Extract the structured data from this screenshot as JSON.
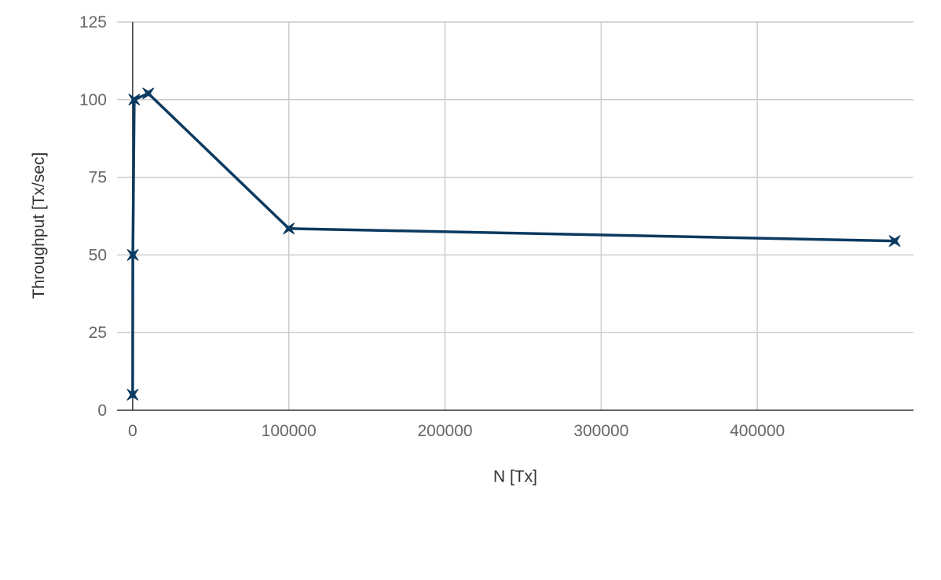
{
  "chart_data": {
    "type": "line",
    "title": "",
    "xlabel": "N [Tx]",
    "ylabel": "Throughput [Tx/sec]",
    "xlim": [
      -10000,
      500000
    ],
    "ylim": [
      0,
      125
    ],
    "x_ticks": [
      0,
      100000,
      200000,
      300000,
      400000
    ],
    "y_ticks": [
      0,
      25,
      50,
      75,
      100,
      125
    ],
    "grid": true,
    "legend": "none",
    "series": [
      {
        "color": "#0b3a60",
        "marker": "star",
        "points": [
          {
            "x": 10,
            "y": 5
          },
          {
            "x": 100,
            "y": 50
          },
          {
            "x": 1000,
            "y": 100
          },
          {
            "x": 10000,
            "y": 102
          },
          {
            "x": 100000,
            "y": 58.5
          },
          {
            "x": 488000,
            "y": 54.5
          }
        ]
      }
    ]
  }
}
